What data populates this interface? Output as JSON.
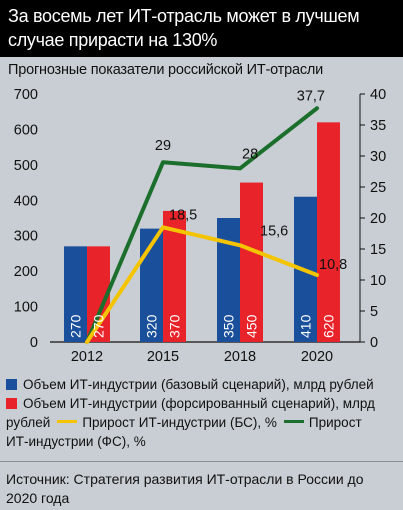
{
  "title": "За восемь лет ИТ-отрасль может в лучшем случае прирасти на 130%",
  "subtitle": "Прогнозные показатели российской ИТ-отрасли",
  "colors": {
    "bs_bar": "#1a4f9c",
    "fs_bar": "#e8232a",
    "bs_line": "#f5c400",
    "fs_line": "#1b6e2b",
    "background": "#c8ced3",
    "header_bg": "#000000"
  },
  "chart_data": {
    "type": "bar",
    "categories": [
      "2012",
      "2015",
      "2018",
      "2020"
    ],
    "left_axis": {
      "ylim": [
        0,
        700
      ],
      "ticks": [
        0,
        100,
        200,
        300,
        400,
        500,
        600,
        700
      ]
    },
    "right_axis": {
      "ylim": [
        0,
        40
      ],
      "ticks": [
        0,
        5,
        10,
        15,
        20,
        25,
        30,
        35,
        40
      ]
    },
    "bar_series": [
      {
        "name": "Объем ИТ-индустрии (базовый сценарий), млрд рублей",
        "values": [
          270,
          320,
          350,
          410
        ],
        "labels": [
          "270",
          "320",
          "350",
          "410"
        ]
      },
      {
        "name": "Объем ИТ-индустрии (форсированный сценарий), млрд рублей",
        "values": [
          270,
          370,
          450,
          620
        ],
        "labels": [
          "270",
          "370",
          "450",
          "620"
        ]
      }
    ],
    "line_series": [
      {
        "name": "Прирост ИТ-индустрии (БС), %",
        "values": [
          0,
          18.5,
          15.6,
          10.8
        ],
        "labels": [
          "",
          "18,5",
          "15,6",
          "10,8"
        ]
      },
      {
        "name": "Прирост ИТ-индустрии (ФС), %",
        "values": [
          0,
          29,
          28,
          37.7
        ],
        "labels": [
          "",
          "29",
          "28",
          "37,7"
        ]
      }
    ],
    "grid": false
  },
  "legend": {
    "bs_bar": "Объем ИТ-индустрии (базовый сценарий), млрд рублей",
    "fs_bar_a": "Объем ИТ-индустрии (форсированный сценарий), млрд",
    "fs_bar_b": "рублей",
    "bs_line": "Прирост ИТ-индустрии (БС), %",
    "fs_line_a": "Прирост",
    "fs_line_b": "ИТ-индустрии (ФС), %"
  },
  "source": "Источник: Стратегия развития ИТ-отрасли в России до 2020 года"
}
